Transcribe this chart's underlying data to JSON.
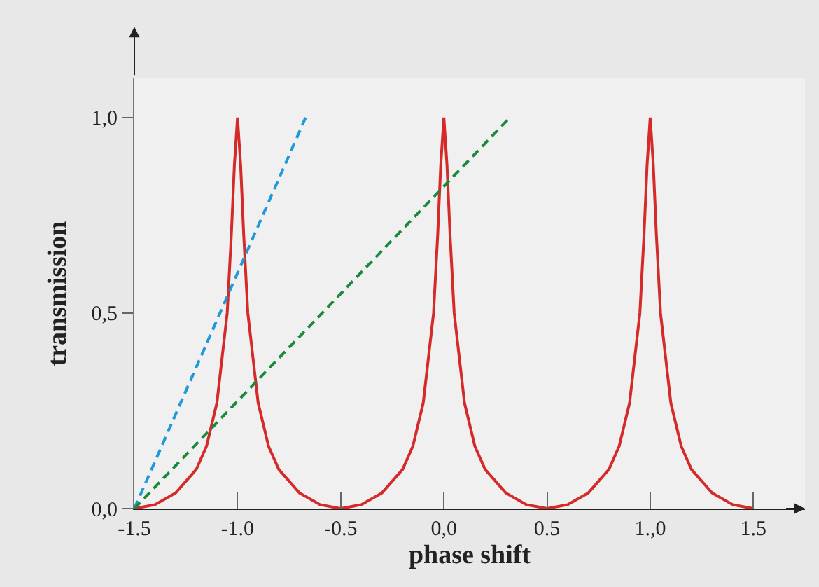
{
  "chart_data": {
    "type": "line",
    "xlabel": "phase shift",
    "ylabel": "transmission",
    "xlim": [
      -1.5,
      1.75
    ],
    "ylim": [
      0,
      1.1
    ],
    "xticks": [
      -1.5,
      {
        "value": -1,
        "label": "-1.0"
      },
      -0.5,
      {
        "value": 0,
        "label": "0,0"
      },
      0.5,
      {
        "value": 1,
        "label": "1.,0"
      },
      1.5
    ],
    "yticks": [
      {
        "value": 0,
        "label": "0,0"
      },
      {
        "value": 0.5,
        "label": "0,5"
      },
      {
        "value": 1,
        "label": "1,0"
      }
    ],
    "grid": false,
    "series": [
      {
        "color": "#d42a2a",
        "line_style": "solid",
        "x": [
          -1.5,
          -1.4,
          -1.3,
          -1.2,
          -1.15,
          -1.1,
          -1.05,
          -1.03,
          -1.015,
          -1.0,
          -0.985,
          -0.97,
          -0.95,
          -0.9,
          -0.85,
          -0.8,
          -0.7,
          -0.6,
          -0.5,
          -0.4,
          -0.3,
          -0.2,
          -0.15,
          -0.1,
          -0.05,
          -0.03,
          -0.015,
          0,
          0.015,
          0.03,
          0.05,
          0.1,
          0.15,
          0.2,
          0.3,
          0.4,
          0.5,
          0.6,
          0.7,
          0.8,
          0.85,
          0.9,
          0.95,
          0.97,
          0.985,
          1.0,
          1.015,
          1.03,
          1.05,
          1.1,
          1.15,
          1.2,
          1.3,
          1.4,
          1.5
        ],
        "values": [
          0,
          0.01,
          0.04,
          0.1,
          0.16,
          0.27,
          0.5,
          0.7,
          0.88,
          1.0,
          0.88,
          0.7,
          0.5,
          0.27,
          0.16,
          0.1,
          0.04,
          0.01,
          0,
          0.01,
          0.04,
          0.1,
          0.16,
          0.27,
          0.5,
          0.7,
          0.88,
          1.0,
          0.88,
          0.7,
          0.5,
          0.27,
          0.16,
          0.1,
          0.04,
          0.01,
          0,
          0.01,
          0.04,
          0.1,
          0.16,
          0.27,
          0.5,
          0.7,
          0.88,
          1.0,
          0.88,
          0.7,
          0.5,
          0.27,
          0.16,
          0.1,
          0.04,
          0.01,
          0
        ]
      },
      {
        "color": "#1f9ad6",
        "line_style": "dashed",
        "x": [
          -1.5,
          -0.67
        ],
        "values": [
          0,
          1.0
        ]
      },
      {
        "color": "#1a8a3a",
        "line_style": "dashed",
        "x": [
          -1.5,
          0.32
        ],
        "values": [
          0,
          1.0
        ]
      }
    ]
  }
}
